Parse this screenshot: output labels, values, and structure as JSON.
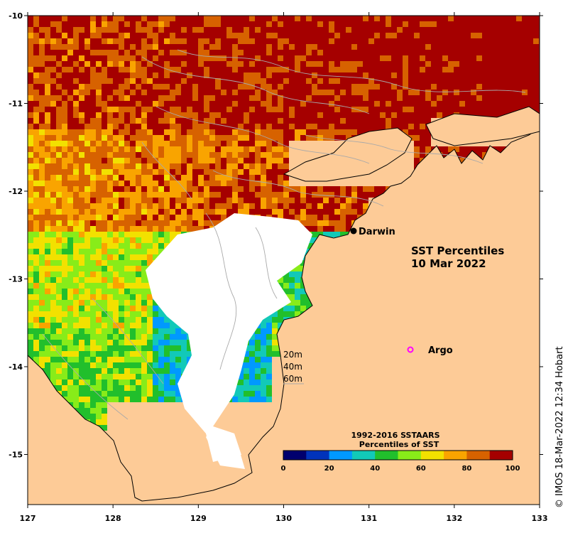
{
  "map": {
    "title_line1": "SST Percentiles",
    "title_line2": "10 Mar 2022",
    "x_ticks": [
      "127",
      "128",
      "129",
      "130",
      "131",
      "132",
      "133"
    ],
    "y_ticks": [
      "-10",
      "-11",
      "-12",
      "-13",
      "-14",
      "-15"
    ],
    "lon_range": [
      127,
      133
    ],
    "lat_range": [
      -15.6,
      -10
    ],
    "land_color": "#fdcb97",
    "no_data_color": "#ffffff",
    "contour_color": "#a9a9a9"
  },
  "places": [
    {
      "name": "Darwin",
      "marker": "filled-circle",
      "lon": 130.84,
      "lat": -12.46
    },
    {
      "name": "Argo",
      "marker": "magenta-ring",
      "lon": 131.5,
      "lat": -13.81
    }
  ],
  "depth_legend": [
    "20m",
    "40m",
    "60m"
  ],
  "colorbar": {
    "title_line1": "1992-2016 SSTAARS",
    "title_line2": "Percentiles of SST",
    "ticks": [
      "0",
      "20",
      "40",
      "60",
      "80",
      "100"
    ],
    "colors": [
      "#00006e",
      "#0033bb",
      "#0099ff",
      "#12c9b8",
      "#21bf2c",
      "#88ec19",
      "#f2e100",
      "#f9a400",
      "#d76200",
      "#a50000"
    ]
  },
  "credit": "© IMOS 18-Mar-2022 12:34 Hobart"
}
